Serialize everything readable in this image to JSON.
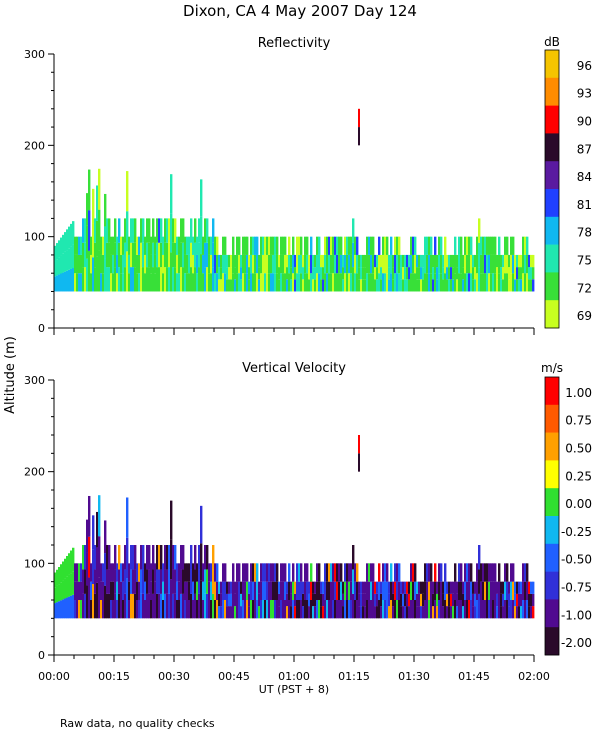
{
  "figure": {
    "title": "Dixon, CA  4 May 2007  Day 124",
    "ylabel": "Altitude (m)",
    "xlabel": "UT  (PST + 8)",
    "footnote": "Raw data, no quality checks"
  },
  "chart_data": [
    {
      "type": "heatmap",
      "title": "Reflectivity",
      "xlabel": "UT  (PST + 8)",
      "ylabel": "Altitude (m)",
      "xlim": [
        "00:00",
        "02:00"
      ],
      "xticks": [
        "00:00",
        "00:15",
        "00:30",
        "00:45",
        "01:00",
        "01:15",
        "01:30",
        "01:45",
        "02:00"
      ],
      "ylim": [
        0,
        300
      ],
      "yticks": [
        0,
        100,
        200,
        300
      ],
      "colorbar": {
        "unit": "dB",
        "labels": [
          "96",
          "93",
          "90",
          "87",
          "84",
          "81",
          "78",
          "75",
          "72",
          "69"
        ],
        "colors": [
          "#f5c400",
          "#ff8c00",
          "#ff0000",
          "#2a0a2a",
          "#5a1aa0",
          "#2040ff",
          "#10b8f0",
          "#20e8b0",
          "#38e038",
          "#c8ff20"
        ]
      },
      "data_extent": {
        "base_altitude_m": 40,
        "typical_top_m": [
          80,
          100
        ],
        "max_top_m": 180,
        "isolated_return": {
          "time": "01:16",
          "altitude_m": [
            200,
            240
          ]
        }
      }
    },
    {
      "type": "heatmap",
      "title": "Vertical Velocity",
      "xlabel": "UT  (PST + 8)",
      "ylabel": "Altitude (m)",
      "xlim": [
        "00:00",
        "02:00"
      ],
      "xticks": [
        "00:00",
        "00:15",
        "00:30",
        "00:45",
        "01:00",
        "01:15",
        "01:30",
        "01:45",
        "02:00"
      ],
      "ylim": [
        0,
        300
      ],
      "yticks": [
        0,
        100,
        200,
        300
      ],
      "colorbar": {
        "unit": "m/s",
        "labels": [
          "1.00",
          "0.75",
          "0.50",
          "0.25",
          "0.00",
          "-0.25",
          "-0.50",
          "-0.75",
          "-1.00",
          "-2.00"
        ],
        "colors": [
          "#ff0000",
          "#ff5a00",
          "#ffa000",
          "#ffff00",
          "#30e030",
          "#10b8f0",
          "#2060ff",
          "#3030d8",
          "#500a90",
          "#2a0a2a"
        ]
      },
      "data_extent": {
        "base_altitude_m": 40,
        "typical_top_m": [
          80,
          100
        ],
        "max_top_m": 180,
        "isolated_return": {
          "time": "01:16",
          "altitude_m": [
            200,
            240
          ]
        }
      }
    }
  ]
}
